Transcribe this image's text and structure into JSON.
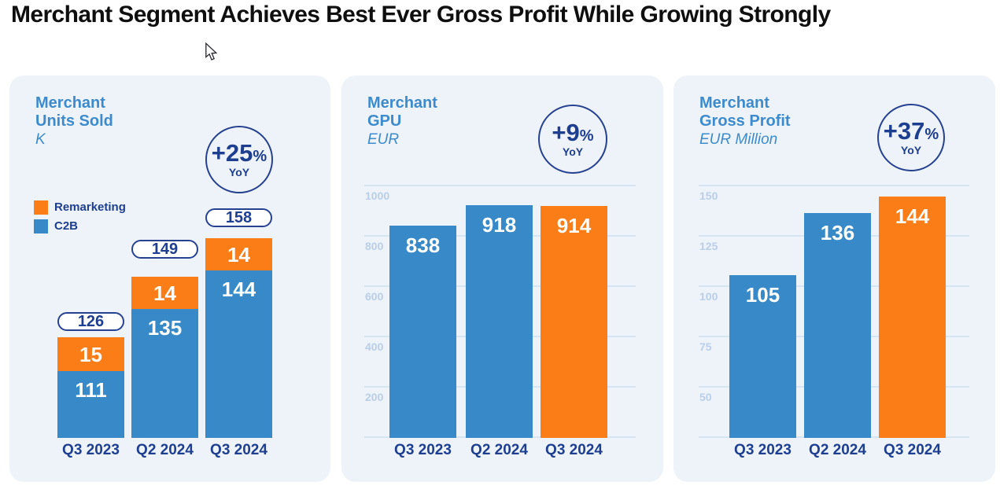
{
  "page": {
    "title": "Merchant Segment Achieves Best Ever Gross Profit While Growing Strongly"
  },
  "colors": {
    "bar_blue": "#3789c8",
    "bar_orange": "#fb7d17",
    "navy_text": "#1e3e90",
    "heading_blue": "#3d8bcc",
    "card_background": "#edf3f9",
    "gridline": "#d7e4f1",
    "axis_label": "#b9cee8",
    "pill_background": "#ffffff",
    "title_black": "#0f0f0f"
  },
  "panels": [
    {
      "id": "merchant-units-sold",
      "title_lines": [
        "Merchant",
        "Units Sold"
      ],
      "unit": "K",
      "badge": {
        "value": "+25",
        "suffix": "%",
        "period": "YoY"
      },
      "legend": [
        {
          "label": "Remarketing",
          "color": "#fb7d17"
        },
        {
          "label": "C2B",
          "color": "#3789c8"
        }
      ],
      "chart_data": {
        "type": "bar",
        "stacked": true,
        "title": "Merchant Units Sold",
        "ylabel": "K",
        "categories": [
          "Q3 2023",
          "Q2 2024",
          "Q3 2024"
        ],
        "series": [
          {
            "name": "C2B",
            "color": "#3789c8",
            "values": [
              111,
              135,
              144
            ]
          },
          {
            "name": "Remarketing",
            "color": "#fb7d17",
            "values": [
              15,
              14,
              14
            ]
          }
        ],
        "totals": [
          126,
          149,
          158
        ],
        "grid": false,
        "legend_position": "upper-left",
        "note": "bar heights stylized, not to value scale"
      }
    },
    {
      "id": "merchant-gpu",
      "title_lines": [
        "Merchant",
        "GPU"
      ],
      "unit": "EUR",
      "badge": {
        "value": "+9",
        "suffix": "%",
        "period": "YoY"
      },
      "chart_data": {
        "type": "bar",
        "stacked": false,
        "title": "Merchant GPU",
        "ylabel": "EUR",
        "categories": [
          "Q3 2023",
          "Q2 2024",
          "Q3 2024"
        ],
        "values": [
          838,
          918,
          914
        ],
        "bar_colors": [
          "#3789c8",
          "#3789c8",
          "#fb7d17"
        ],
        "ylim": [
          0,
          1000
        ],
        "yticks": [
          200,
          400,
          600,
          800,
          1000
        ],
        "grid": true,
        "legend_position": "none"
      }
    },
    {
      "id": "merchant-gross-profit",
      "title_lines": [
        "Merchant",
        "Gross Profit"
      ],
      "unit": "EUR Million",
      "badge": {
        "value": "+37",
        "suffix": "%",
        "period": "YoY"
      },
      "chart_data": {
        "type": "bar",
        "stacked": false,
        "title": "Merchant Gross Profit",
        "ylabel": "EUR Million",
        "categories": [
          "Q3 2023",
          "Q2 2024",
          "Q3 2024"
        ],
        "values": [
          105,
          136,
          144
        ],
        "bar_colors": [
          "#3789c8",
          "#3789c8",
          "#fb7d17"
        ],
        "ylim": [
          25,
          150
        ],
        "yticks": [
          50,
          75,
          100,
          125,
          150
        ],
        "grid": true,
        "legend_position": "none"
      }
    }
  ]
}
